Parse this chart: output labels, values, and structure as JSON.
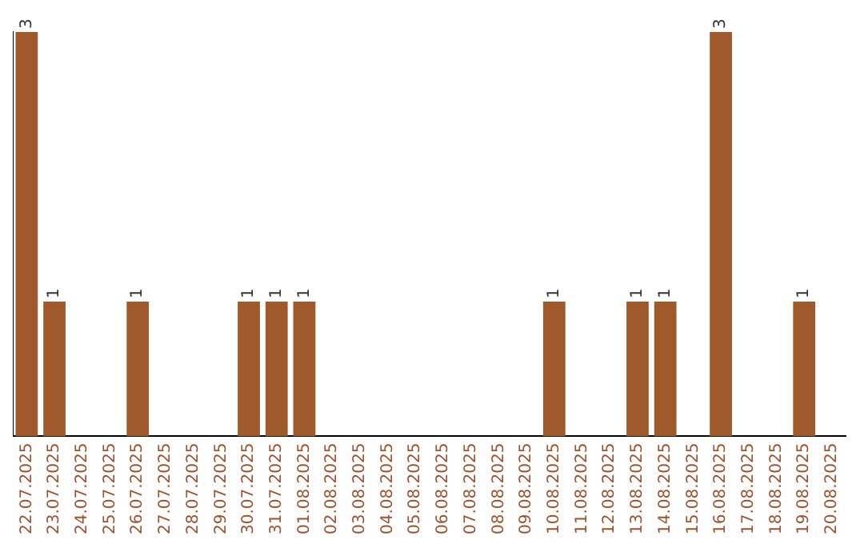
{
  "chart_data": {
    "type": "bar",
    "categories": [
      "22.07.2025",
      "23.07.2025",
      "24.07.2025",
      "25.07.2025",
      "26.07.2025",
      "27.07.2025",
      "28.07.2025",
      "29.07.2025",
      "30.07.2025",
      "31.07.2025",
      "01.08.2025",
      "02.08.2025",
      "03.08.2025",
      "04.08.2025",
      "05.08.2025",
      "06.08.2025",
      "07.08.2025",
      "08.08.2025",
      "09.08.2025",
      "10.08.2025",
      "11.08.2025",
      "12.08.2025",
      "13.08.2025",
      "14.08.2025",
      "15.08.2025",
      "16.08.2025",
      "17.08.2025",
      "18.08.2025",
      "19.08.2025",
      "20.08.2025"
    ],
    "values": [
      3,
      1,
      0,
      0,
      1,
      0,
      0,
      0,
      1,
      1,
      1,
      0,
      0,
      0,
      0,
      0,
      0,
      0,
      0,
      1,
      0,
      0,
      1,
      1,
      0,
      3,
      0,
      0,
      1,
      0
    ],
    "value_labels": [
      "3",
      "1",
      null,
      null,
      "1",
      null,
      null,
      null,
      "1",
      "1",
      "1",
      null,
      null,
      null,
      null,
      null,
      null,
      null,
      null,
      "1",
      null,
      null,
      "1",
      "1",
      null,
      "3",
      null,
      null,
      "1",
      null
    ],
    "color": "#a0592b",
    "ylim": [
      0,
      3
    ],
    "grid": false,
    "legend": false,
    "tick_labels": "x"
  }
}
